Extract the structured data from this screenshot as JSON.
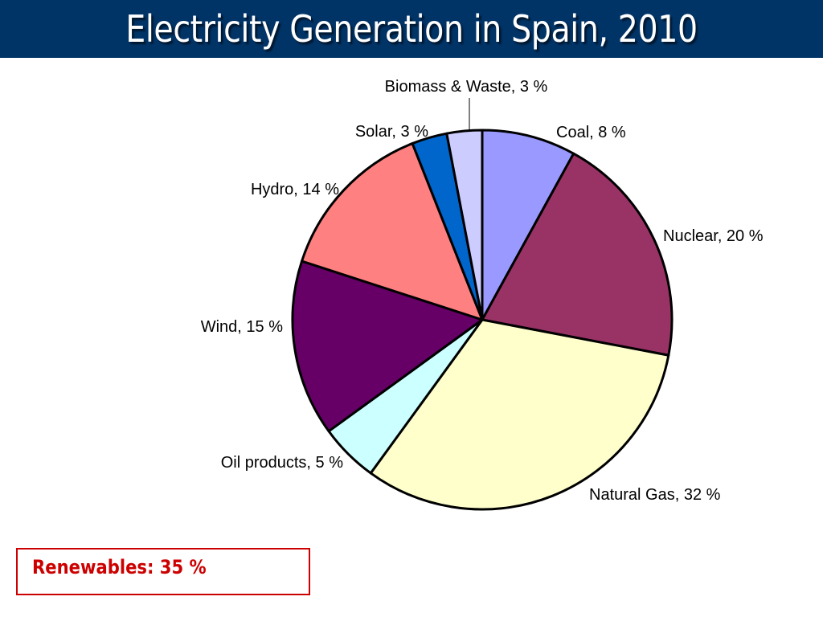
{
  "header": {
    "title": "Electricity Generation in Spain, 2010"
  },
  "chart_data": {
    "type": "pie",
    "title": "Electricity Generation in Spain, 2010",
    "unit": "%",
    "slices": [
      {
        "name": "Coal",
        "value": 8,
        "label": "Coal, 8 %",
        "color": "#9999ff"
      },
      {
        "name": "Nuclear",
        "value": 20,
        "label": "Nuclear, 20 %",
        "color": "#993366"
      },
      {
        "name": "Natural Gas",
        "value": 32,
        "label": "Natural Gas, 32 %",
        "color": "#ffffcc"
      },
      {
        "name": "Oil products",
        "value": 5,
        "label": "Oil products, 5 %",
        "color": "#ccffff"
      },
      {
        "name": "Wind",
        "value": 15,
        "label": "Wind, 15 %",
        "color": "#660066"
      },
      {
        "name": "Hydro",
        "value": 14,
        "label": "Hydro, 14 %",
        "color": "#ff8080"
      },
      {
        "name": "Solar",
        "value": 3,
        "label": "Solar, 3 %",
        "color": "#0066cc"
      },
      {
        "name": "Biomass & Waste",
        "value": 3,
        "label": "Biomass & Waste, 3 %",
        "color": "#ccccff"
      }
    ]
  },
  "note": {
    "text": "Renewables: 35 %",
    "color": "#cc0000"
  },
  "colors": {
    "title_bar": "#003366",
    "title_text": "#ffffff",
    "slice_border": "#000000"
  }
}
